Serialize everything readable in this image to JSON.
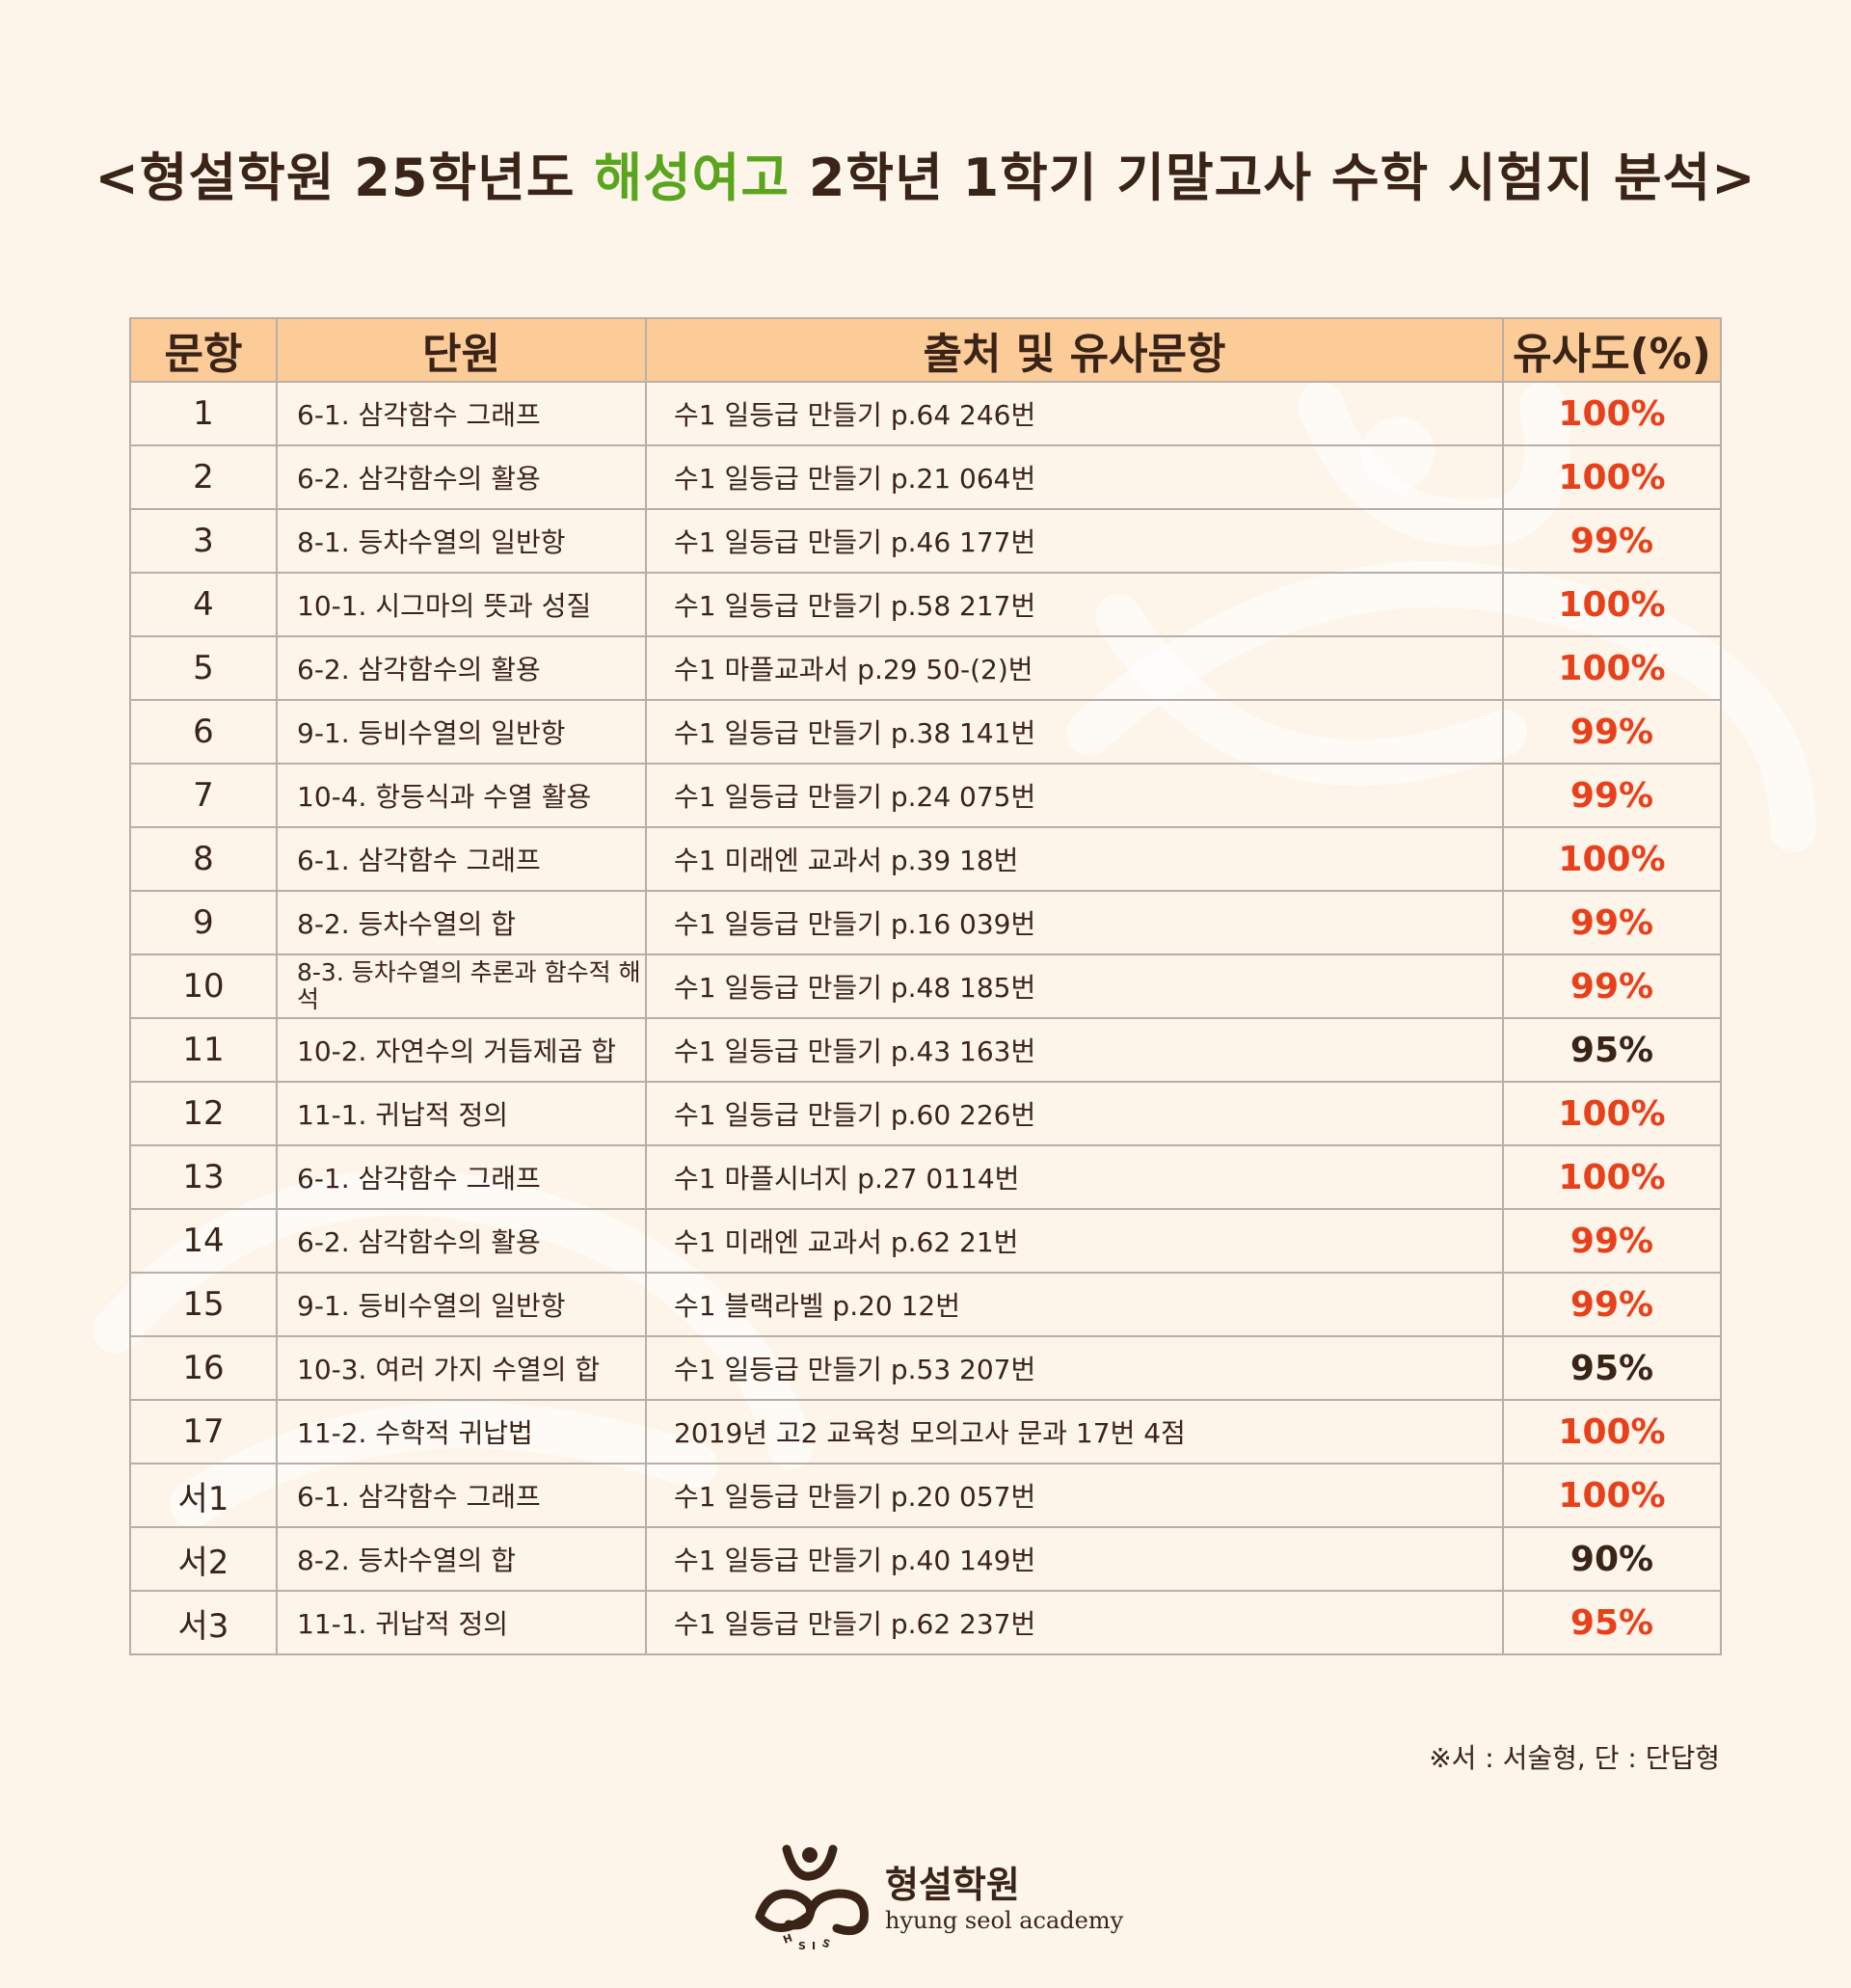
{
  "title": {
    "prefix": "<형설학원 25학년도 ",
    "highlight": "해성여고",
    "suffix": " 2학년 1학기 기말고사 수학 시험지 분석>",
    "highlight_color": "#5aa51e"
  },
  "table": {
    "headers": [
      "문항",
      "단원",
      "출처 및 유사문항",
      "유사도(%)"
    ],
    "rows": [
      {
        "num": "1",
        "unit": "6-1. 삼각함수 그래프",
        "source": "수1 일등급 만들기 p.64 246번",
        "sim": "100%"
      },
      {
        "num": "2",
        "unit": "6-2. 삼각함수의 활용",
        "source": "수1 일등급 만들기 p.21 064번",
        "sim": "100%"
      },
      {
        "num": "3",
        "unit": "8-1. 등차수열의 일반항",
        "source": "수1 일등급 만들기 p.46 177번",
        "sim": "99%"
      },
      {
        "num": "4",
        "unit": "10-1. 시그마의 뜻과 성질",
        "source": "수1 일등급 만들기 p.58 217번",
        "sim": "100%"
      },
      {
        "num": "5",
        "unit": "6-2. 삼각함수의 활용",
        "source": "수1 마플교과서 p.29 50-(2)번",
        "sim": "100%"
      },
      {
        "num": "6",
        "unit": "9-1. 등비수열의 일반항",
        "source": "수1 일등급 만들기 p.38 141번",
        "sim": "99%"
      },
      {
        "num": "7",
        "unit": "10-4. 항등식과 수열 활용",
        "source": "수1 일등급 만들기 p.24 075번",
        "sim": "99%"
      },
      {
        "num": "8",
        "unit": "6-1. 삼각함수 그래프",
        "source": "수1 미래엔 교과서 p.39 18번",
        "sim": "100%"
      },
      {
        "num": "9",
        "unit": "8-2. 등차수열의 합",
        "source": "수1 일등급 만들기 p.16 039번",
        "sim": "99%"
      },
      {
        "num": "10",
        "unit": "8-3. 등차수열의 추론과 함수적 해석",
        "source": "수1 일등급 만들기 p.48 185번",
        "sim": "99%"
      },
      {
        "num": "11",
        "unit": "10-2. 자연수의 거듭제곱 합",
        "source": "수1 일등급 만들기 p.43 163번",
        "sim": "95%"
      },
      {
        "num": "12",
        "unit": "11-1. 귀납적 정의",
        "source": "수1 일등급 만들기 p.60 226번",
        "sim": "100%"
      },
      {
        "num": "13",
        "unit": "6-1. 삼각함수 그래프",
        "source": "수1 마플시너지 p.27 0114번",
        "sim": "100%"
      },
      {
        "num": "14",
        "unit": "6-2. 삼각함수의 활용",
        "source": "수1 미래엔 교과서 p.62 21번",
        "sim": "99%"
      },
      {
        "num": "15",
        "unit": "9-1. 등비수열의 일반항",
        "source": "수1 블랙라벨 p.20 12번",
        "sim": "99%"
      },
      {
        "num": "16",
        "unit": "10-3. 여러 가지 수열의 합",
        "source": "수1 일등급 만들기 p.53 207번",
        "sim": "95%"
      },
      {
        "num": "17",
        "unit": "11-2. 수학적 귀납법",
        "source": "2019년 고2 교육청 모의고사 문과 17번 4점",
        "sim": "100%"
      },
      {
        "num": "서1",
        "unit": "6-1. 삼각함수 그래프",
        "source": "수1 일등급 만들기 p.20 057번",
        "sim": "100%"
      },
      {
        "num": "서2",
        "unit": "8-2. 등차수열의 합",
        "source": "수1 일등급 만들기 p.40 149번",
        "sim": "90%"
      },
      {
        "num": "서3",
        "unit": "11-1. 귀납적 정의",
        "source": "수1 일등급 만들기 p.62 237번",
        "sim": "95%"
      }
    ]
  },
  "footnote": "※서 : 서술형, 단 : 단답형",
  "brand": {
    "name": "형설학원",
    "sub": "hyung seol academy",
    "logo_icon": "hsa-logo-icon"
  },
  "colors": {
    "background": "#fdf4ea",
    "header_bg": "#fbcb98",
    "accent_red": "#e8401a",
    "text_dark": "#3a2418"
  }
}
